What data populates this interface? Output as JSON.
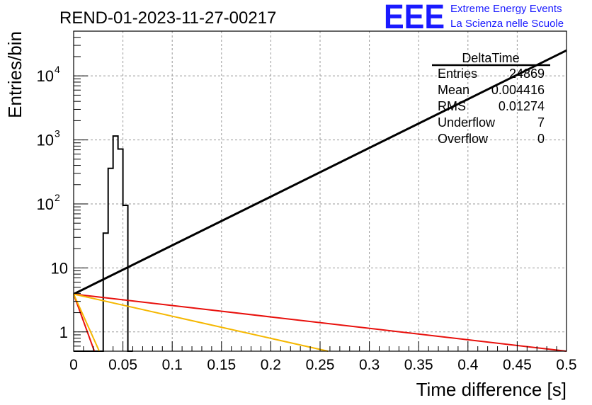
{
  "header": {
    "run_title": "REND-01-2023-11-27-00217",
    "logo_letters": "EEE",
    "logo_line1": "Extreme Energy Events",
    "logo_line2": "La Scienza nelle Scuole",
    "logo_color": "#1a1aff"
  },
  "stats_box": {
    "title": "DeltaTime",
    "rows": [
      {
        "label": "Entries",
        "value": "24869"
      },
      {
        "label": "Mean",
        "value": "0.004416"
      },
      {
        "label": "RMS",
        "value": "0.01274"
      },
      {
        "label": "Underflow",
        "value": "7"
      },
      {
        "label": "Overflow",
        "value": "0"
      }
    ]
  },
  "chart_data": {
    "type": "line",
    "xlabel": "Time difference [s]",
    "ylabel": "Entries/bin",
    "xlim": [
      0,
      0.5
    ],
    "ylim": [
      0.5,
      50000
    ],
    "yscale": "log",
    "grid": true,
    "xticks": [
      "0",
      "0.05",
      "0.1",
      "0.15",
      "0.2",
      "0.25",
      "0.3",
      "0.35",
      "0.4",
      "0.45",
      "0.5"
    ],
    "yticks": [
      {
        "value": 1,
        "label": "1",
        "exp": ""
      },
      {
        "value": 10,
        "label": "10",
        "exp": ""
      },
      {
        "value": 100,
        "label": "10",
        "exp": "2"
      },
      {
        "value": 1000,
        "label": "10",
        "exp": "3"
      },
      {
        "value": 10000,
        "label": "10",
        "exp": "4"
      }
    ],
    "histogram": {
      "color": "#000000",
      "bins": [
        {
          "x0": 0.0,
          "x1": 0.03,
          "y": 0.5
        },
        {
          "x0": 0.03,
          "x1": 0.035,
          "y": 35
        },
        {
          "x0": 0.035,
          "x1": 0.04,
          "y": 360
        },
        {
          "x0": 0.04,
          "x1": 0.045,
          "y": 1150
        },
        {
          "x0": 0.045,
          "x1": 0.05,
          "y": 720
        },
        {
          "x0": 0.05,
          "x1": 0.055,
          "y": 95
        },
        {
          "x0": 0.055,
          "x1": 0.06,
          "y": 0.5
        }
      ]
    },
    "series": [
      {
        "color": "#000000",
        "x": [
          0,
          0.5
        ],
        "y": [
          3.9,
          25000
        ]
      },
      {
        "color": "#e8100c",
        "x": [
          0,
          0.5
        ],
        "y": [
          3.9,
          0.5
        ]
      },
      {
        "color": "#f5b700",
        "x": [
          0,
          0.258
        ],
        "y": [
          3.9,
          0.5
        ]
      },
      {
        "color": "#e8100c",
        "x": [
          0,
          0.021
        ],
        "y": [
          3.9,
          0.5
        ]
      },
      {
        "color": "#f5b700",
        "x": [
          0,
          0.026
        ],
        "y": [
          3.9,
          0.5
        ]
      }
    ]
  }
}
